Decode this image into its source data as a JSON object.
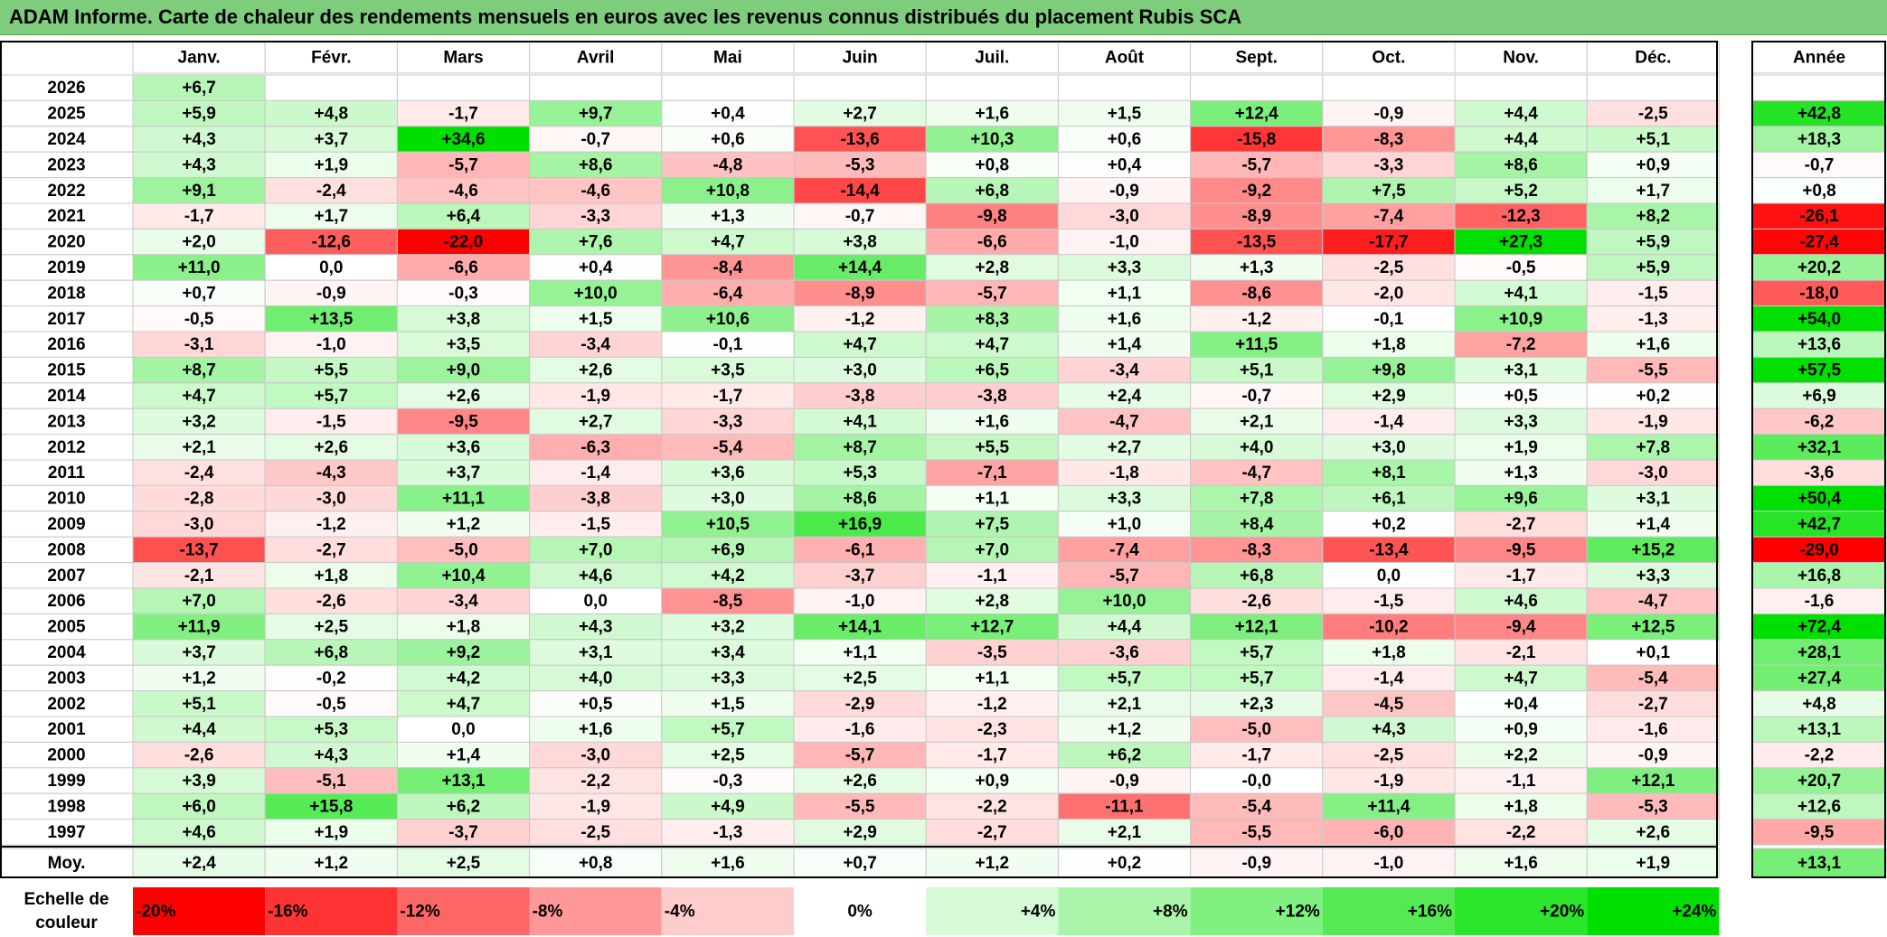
{
  "title": "ADAM Informe. Carte de chaleur des rendements mensuels en euros avec les revenus connus distribués du placement Rubis SCA",
  "chart_data": {
    "type": "heatmap",
    "months": [
      "Janv.",
      "Févr.",
      "Mars",
      "Avril",
      "Mai",
      "Juin",
      "Juil.",
      "Août",
      "Sept.",
      "Oct.",
      "Nov.",
      "Déc."
    ],
    "year_header": "Année",
    "rows": [
      {
        "year": "2026",
        "months": [
          "+6,7",
          "",
          "",
          "",
          "",
          "",
          "",
          "",
          "",
          "",
          "",
          ""
        ],
        "annual": ""
      },
      {
        "year": "2025",
        "months": [
          "+5,9",
          "+4,8",
          "-1,7",
          "+9,7",
          "+0,4",
          "+2,7",
          "+1,6",
          "+1,5",
          "+12,4",
          "-0,9",
          "+4,4",
          "-2,5"
        ],
        "annual": "+42,8"
      },
      {
        "year": "2024",
        "months": [
          "+4,3",
          "+3,7",
          "+34,6",
          "-0,7",
          "+0,6",
          "-13,6",
          "+10,3",
          "+0,6",
          "-15,8",
          "-8,3",
          "+4,4",
          "+5,1"
        ],
        "annual": "+18,3"
      },
      {
        "year": "2023",
        "months": [
          "+4,3",
          "+1,9",
          "-5,7",
          "+8,6",
          "-4,8",
          "-5,3",
          "+0,8",
          "+0,4",
          "-5,7",
          "-3,3",
          "+8,6",
          "+0,9"
        ],
        "annual": "-0,7"
      },
      {
        "year": "2022",
        "months": [
          "+9,1",
          "-2,4",
          "-4,6",
          "-4,6",
          "+10,8",
          "-14,4",
          "+6,8",
          "-0,9",
          "-9,2",
          "+7,5",
          "+5,2",
          "+1,7"
        ],
        "annual": "+0,8"
      },
      {
        "year": "2021",
        "months": [
          "-1,7",
          "+1,7",
          "+6,4",
          "-3,3",
          "+1,3",
          "-0,7",
          "-9,8",
          "-3,0",
          "-8,9",
          "-7,4",
          "-12,3",
          "+8,2"
        ],
        "annual": "-26,1"
      },
      {
        "year": "2020",
        "months": [
          "+2,0",
          "-12,6",
          "-22,0",
          "+7,6",
          "+4,7",
          "+3,8",
          "-6,6",
          "-1,0",
          "-13,5",
          "-17,7",
          "+27,3",
          "+5,9"
        ],
        "annual": "-27,4"
      },
      {
        "year": "2019",
        "months": [
          "+11,0",
          "0,0",
          "-6,6",
          "+0,4",
          "-8,4",
          "+14,4",
          "+2,8",
          "+3,3",
          "+1,3",
          "-2,5",
          "-0,5",
          "+5,9"
        ],
        "annual": "+20,2"
      },
      {
        "year": "2018",
        "months": [
          "+0,7",
          "-0,9",
          "-0,3",
          "+10,0",
          "-6,4",
          "-8,9",
          "-5,7",
          "+1,1",
          "-8,6",
          "-2,0",
          "+4,1",
          "-1,5"
        ],
        "annual": "-18,0"
      },
      {
        "year": "2017",
        "months": [
          "-0,5",
          "+13,5",
          "+3,8",
          "+1,5",
          "+10,6",
          "-1,2",
          "+8,3",
          "+1,6",
          "-1,2",
          "-0,1",
          "+10,9",
          "-1,3"
        ],
        "annual": "+54,0"
      },
      {
        "year": "2016",
        "months": [
          "-3,1",
          "-1,0",
          "+3,5",
          "-3,4",
          "-0,1",
          "+4,7",
          "+4,7",
          "+1,4",
          "+11,5",
          "+1,8",
          "-7,2",
          "+1,6"
        ],
        "annual": "+13,6"
      },
      {
        "year": "2015",
        "months": [
          "+8,7",
          "+5,5",
          "+9,0",
          "+2,6",
          "+3,5",
          "+3,0",
          "+6,5",
          "-3,4",
          "+5,1",
          "+9,8",
          "+3,1",
          "-5,5"
        ],
        "annual": "+57,5"
      },
      {
        "year": "2014",
        "months": [
          "+4,7",
          "+5,7",
          "+2,6",
          "-1,9",
          "-1,7",
          "-3,8",
          "-3,8",
          "+2,4",
          "-0,7",
          "+2,9",
          "+0,5",
          "+0,2"
        ],
        "annual": "+6,9"
      },
      {
        "year": "2013",
        "months": [
          "+3,2",
          "-1,5",
          "-9,5",
          "+2,7",
          "-3,3",
          "+4,1",
          "+1,6",
          "-4,7",
          "+2,1",
          "-1,4",
          "+3,3",
          "-1,9"
        ],
        "annual": "-6,2"
      },
      {
        "year": "2012",
        "months": [
          "+2,1",
          "+2,6",
          "+3,6",
          "-6,3",
          "-5,4",
          "+8,7",
          "+5,5",
          "+2,7",
          "+4,0",
          "+3,0",
          "+1,9",
          "+7,8"
        ],
        "annual": "+32,1"
      },
      {
        "year": "2011",
        "months": [
          "-2,4",
          "-4,3",
          "+3,7",
          "-1,4",
          "+3,6",
          "+5,3",
          "-7,1",
          "-1,8",
          "-4,7",
          "+8,1",
          "+1,3",
          "-3,0"
        ],
        "annual": "-3,6"
      },
      {
        "year": "2010",
        "months": [
          "-2,8",
          "-3,0",
          "+11,1",
          "-3,8",
          "+3,0",
          "+8,6",
          "+1,1",
          "+3,3",
          "+7,8",
          "+6,1",
          "+9,6",
          "+3,1"
        ],
        "annual": "+50,4"
      },
      {
        "year": "2009",
        "months": [
          "-3,0",
          "-1,2",
          "+1,2",
          "-1,5",
          "+10,5",
          "+16,9",
          "+7,5",
          "+1,0",
          "+8,4",
          "+0,2",
          "-2,7",
          "+1,4"
        ],
        "annual": "+42,7"
      },
      {
        "year": "2008",
        "months": [
          "-13,7",
          "-2,7",
          "-5,0",
          "+7,0",
          "+6,9",
          "-6,1",
          "+7,0",
          "-7,4",
          "-8,3",
          "-13,4",
          "-9,5",
          "+15,2"
        ],
        "annual": "-29,0"
      },
      {
        "year": "2007",
        "months": [
          "-2,1",
          "+1,8",
          "+10,4",
          "+4,6",
          "+4,2",
          "-3,7",
          "-1,1",
          "-5,7",
          "+6,8",
          "0,0",
          "-1,7",
          "+3,3"
        ],
        "annual": "+16,8"
      },
      {
        "year": "2006",
        "months": [
          "+7,0",
          "-2,6",
          "-3,4",
          "0,0",
          "-8,5",
          "-1,0",
          "+2,8",
          "+10,0",
          "-2,6",
          "-1,5",
          "+4,6",
          "-4,7"
        ],
        "annual": "-1,6"
      },
      {
        "year": "2005",
        "months": [
          "+11,9",
          "+2,5",
          "+1,8",
          "+4,3",
          "+3,2",
          "+14,1",
          "+12,7",
          "+4,4",
          "+12,1",
          "-10,2",
          "-9,4",
          "+12,5"
        ],
        "annual": "+72,4"
      },
      {
        "year": "2004",
        "months": [
          "+3,7",
          "+6,8",
          "+9,2",
          "+3,1",
          "+3,4",
          "+1,1",
          "-3,5",
          "-3,6",
          "+5,7",
          "+1,8",
          "-2,1",
          "+0,1"
        ],
        "annual": "+28,1"
      },
      {
        "year": "2003",
        "months": [
          "+1,2",
          "-0,2",
          "+4,2",
          "+4,0",
          "+3,3",
          "+2,5",
          "+1,1",
          "+5,7",
          "+5,7",
          "-1,4",
          "+4,7",
          "-5,4"
        ],
        "annual": "+27,4"
      },
      {
        "year": "2002",
        "months": [
          "+5,1",
          "-0,5",
          "+4,7",
          "+0,5",
          "+1,5",
          "-2,9",
          "-1,2",
          "+2,1",
          "+2,3",
          "-4,5",
          "+0,4",
          "-2,7"
        ],
        "annual": "+4,8"
      },
      {
        "year": "2001",
        "months": [
          "+4,4",
          "+5,3",
          "0,0",
          "+1,6",
          "+5,7",
          "-1,6",
          "-2,3",
          "+1,2",
          "-5,0",
          "+4,3",
          "+0,9",
          "-1,6"
        ],
        "annual": "+13,1"
      },
      {
        "year": "2000",
        "months": [
          "-2,6",
          "+4,3",
          "+1,4",
          "-3,0",
          "+2,5",
          "-5,7",
          "-1,7",
          "+6,2",
          "-1,7",
          "-2,5",
          "+2,2",
          "-0,9"
        ],
        "annual": "-2,2"
      },
      {
        "year": "1999",
        "months": [
          "+3,9",
          "-5,1",
          "+13,1",
          "-2,2",
          "-0,3",
          "+2,6",
          "+0,9",
          "-0,9",
          "-0,0",
          "-1,9",
          "-1,1",
          "+12,1"
        ],
        "annual": "+20,7"
      },
      {
        "year": "1998",
        "months": [
          "+6,0",
          "+15,8",
          "+6,2",
          "-1,9",
          "+4,9",
          "-5,5",
          "-2,2",
          "-11,1",
          "-5,4",
          "+11,4",
          "+1,8",
          "-5,3"
        ],
        "annual": "+12,6"
      },
      {
        "year": "1997",
        "months": [
          "+4,6",
          "+1,9",
          "-3,7",
          "-2,5",
          "-1,3",
          "+2,9",
          "-2,7",
          "+2,1",
          "-5,5",
          "-6,0",
          "-2,2",
          "+2,6"
        ],
        "annual": "-9,5"
      }
    ],
    "average": {
      "label": "Moy.",
      "months": [
        "+2,4",
        "+1,2",
        "+2,5",
        "+0,8",
        "+1,6",
        "+0,7",
        "+1,2",
        "+0,2",
        "-0,9",
        "-1,0",
        "+1,6",
        "+1,9"
      ],
      "annual": "+13,1"
    },
    "color_scale": {
      "label_line1": "Echelle de",
      "label_line2": "couleur",
      "steps": [
        "-20%",
        "-16%",
        "-12%",
        "-8%",
        "-4%",
        "0%",
        "+4%",
        "+8%",
        "+12%",
        "+16%",
        "+20%",
        "+24%"
      ],
      "step_values": [
        -20,
        -16,
        -12,
        -8,
        -4,
        0,
        4,
        8,
        12,
        16,
        20,
        24
      ],
      "max_red_color": "#ff0000",
      "max_green_color": "#00e000",
      "neutral_color": "#ffffff"
    }
  }
}
